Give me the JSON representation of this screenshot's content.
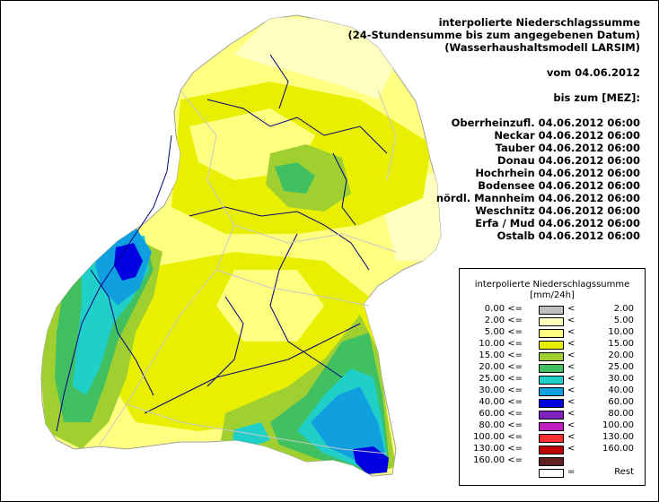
{
  "header": {
    "title_lines": [
      "interpolierte Niederschlagssumme",
      "(24-Stundensumme bis zum angegebenen Datum)",
      "(Wasserhaushaltsmodell LARSIM)"
    ],
    "date_line": "vom 04.06.2012",
    "until_label": "bis zum [MEZ]:",
    "stations": [
      "Oberrheinzufl. 04.06.2012 06:00",
      "Neckar 04.06.2012 06:00",
      "Tauber 04.06.2012 06:00",
      "Donau 04.06.2012 06:00",
      "Hochrhein 04.06.2012 06:00",
      "Bodensee 04.06.2012 06:00",
      "nördl. Mannheim 04.06.2012 06:00",
      "Weschnitz 04.06.2012 06:00",
      "Erfa / Mud 04.06.2012 06:00",
      "Ostalb 04.06.2012 06:00"
    ]
  },
  "legend": {
    "title": "interpolierte Niederschlagssumme",
    "unit": "[mm/24h]",
    "rows": [
      {
        "lo": "0.00 <=",
        "op": "<",
        "hi": "2.00",
        "color": "#c0c0c0"
      },
      {
        "lo": "2.00 <=",
        "op": "<",
        "hi": "5.00",
        "color": "#ffffc0"
      },
      {
        "lo": "5.00 <=",
        "op": "<",
        "hi": "10.00",
        "color": "#ffff80"
      },
      {
        "lo": "10.00 <=",
        "op": "<",
        "hi": "15.00",
        "color": "#e8f000"
      },
      {
        "lo": "15.00 <=",
        "op": "<",
        "hi": "20.00",
        "color": "#a0d030"
      },
      {
        "lo": "20.00 <=",
        "op": "<",
        "hi": "25.00",
        "color": "#40c060"
      },
      {
        "lo": "25.00 <=",
        "op": "<",
        "hi": "30.00",
        "color": "#20d0c8"
      },
      {
        "lo": "30.00 <=",
        "op": "<",
        "hi": "40.00",
        "color": "#10a0e0"
      },
      {
        "lo": "40.00 <=",
        "op": "<",
        "hi": "60.00",
        "color": "#0000e0"
      },
      {
        "lo": "60.00 <=",
        "op": "<",
        "hi": "80.00",
        "color": "#8020c0"
      },
      {
        "lo": "80.00 <=",
        "op": "<",
        "hi": "100.00",
        "color": "#c020c0"
      },
      {
        "lo": "100.00 <=",
        "op": "<",
        "hi": "130.00",
        "color": "#ff3030"
      },
      {
        "lo": "130.00 <=",
        "op": "<",
        "hi": "160.00",
        "color": "#c00000"
      },
      {
        "lo": "160.00 <=",
        "op": "",
        "hi": "",
        "color": "#602020"
      },
      {
        "lo": "",
        "op": "=",
        "hi": "Rest",
        "color": "#ffffff"
      }
    ]
  }
}
